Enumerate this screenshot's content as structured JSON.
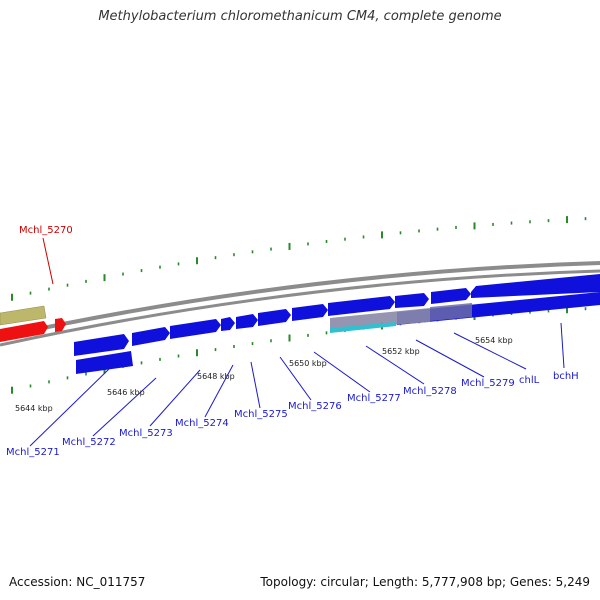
{
  "title": "Methylobacterium chloromethanicum CM4, complete genome",
  "footer": {
    "accession": "Accession: NC_011757",
    "summary": "Topology: circular; Length: 5,777,908 bp; Genes: 5,249"
  },
  "colors": {
    "gene": "#1010dd",
    "highlight_gene": "#ee1111",
    "olive_feature": "#bdb76b",
    "backbone": "#8c8c8c",
    "tick": "#2a8a2a",
    "gene_label": "#1a1acc",
    "highlight_label": "#cc0000"
  },
  "highlight_gene": {
    "label": "Mchl_5270"
  },
  "genes": [
    {
      "label": "Mchl_5271"
    },
    {
      "label": "Mchl_5272"
    },
    {
      "label": "Mchl_5273"
    },
    {
      "label": "Mchl_5274"
    },
    {
      "label": "Mchl_5275"
    },
    {
      "label": "Mchl_5276"
    },
    {
      "label": "Mchl_5277"
    },
    {
      "label": "Mchl_5278"
    },
    {
      "label": "Mchl_5279"
    },
    {
      "label": "chlL"
    },
    {
      "label": "bchH"
    }
  ],
  "kbp_labels": [
    "5644 kbp",
    "5646 kbp",
    "5648 kbp",
    "5650 kbp",
    "5652 kbp",
    "5654 kbp"
  ]
}
